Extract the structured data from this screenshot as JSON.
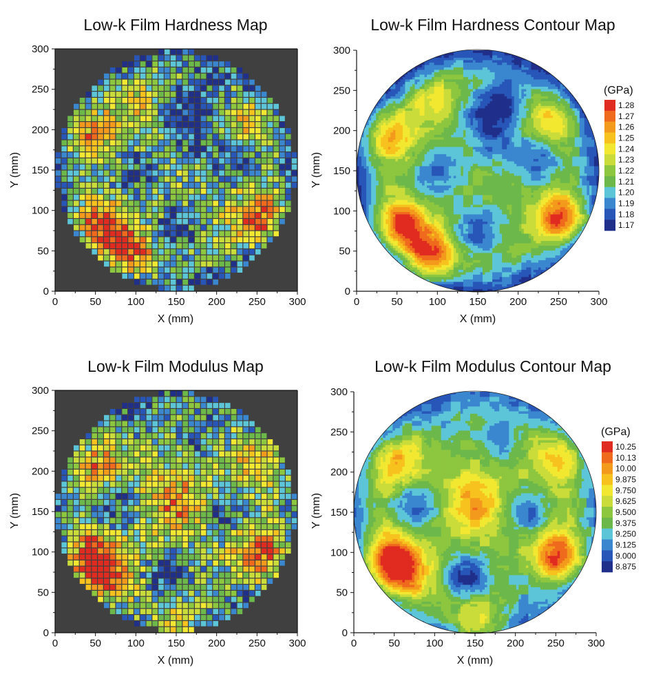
{
  "figure": {
    "colors": {
      "background": "#ffffff",
      "axis": "#111111",
      "outside_wafer": "#404040",
      "contour_line": "#1a1a1a"
    },
    "colormap": [
      "#1f2f8a",
      "#2856b8",
      "#3a86cf",
      "#5cc6d8",
      "#6db84a",
      "#8dc63f",
      "#c9dc3a",
      "#f2e831",
      "#f7c21e",
      "#f39a1d",
      "#ef6a1c",
      "#e02b20"
    ]
  },
  "chart_data": [
    {
      "id": "hardness-map",
      "type": "heatmap",
      "title": "Low-k Film Hardness Map",
      "xlabel": "X (mm)",
      "ylabel": "Y (mm)",
      "xlim": [
        0,
        300
      ],
      "ylim": [
        0,
        300
      ],
      "xticks": [
        0,
        50,
        100,
        150,
        200,
        250,
        300
      ],
      "yticks": [
        0,
        50,
        100,
        150,
        200,
        250,
        300
      ],
      "grid_pitch_mm": 7.5,
      "wafer_diameter_mm": 300,
      "value_range": [
        1.165,
        1.285
      ],
      "unit": "GPa",
      "hotspots": [
        {
          "x": 55,
          "y": 80,
          "value": 1.285
        },
        {
          "x": 90,
          "y": 45,
          "value": 1.28
        },
        {
          "x": 255,
          "y": 90,
          "value": 1.285
        },
        {
          "x": 40,
          "y": 195,
          "value": 1.26
        },
        {
          "x": 240,
          "y": 210,
          "value": 1.25
        },
        {
          "x": 100,
          "y": 235,
          "value": 1.24
        },
        {
          "x": 150,
          "y": 160,
          "value": 1.22
        },
        {
          "x": 185,
          "y": 240,
          "value": 1.18
        },
        {
          "x": 155,
          "y": 220,
          "value": 1.185
        },
        {
          "x": 225,
          "y": 165,
          "value": 1.18
        },
        {
          "x": 100,
          "y": 150,
          "value": 1.185
        },
        {
          "x": 150,
          "y": 75,
          "value": 1.18
        },
        {
          "x": 170,
          "y": 185,
          "value": 1.19
        }
      ],
      "base_value": 1.215,
      "edge_value": 1.175
    },
    {
      "id": "hardness-contour",
      "type": "heatmap",
      "title": "Low-k Film Hardness Contour Map",
      "xlabel": "X (mm)",
      "ylabel": "Y (mm)",
      "xlim": [
        0,
        300
      ],
      "ylim": [
        0,
        300
      ],
      "xticks": [
        0,
        50,
        100,
        150,
        200,
        250,
        300
      ],
      "yticks": [
        0,
        50,
        100,
        150,
        200,
        250,
        300
      ],
      "wafer_diameter_mm": 300,
      "value_range": [
        1.165,
        1.285
      ],
      "unit": "GPa",
      "colorbar": {
        "unit_label": "(GPa)",
        "levels": [
          "1.28",
          "1.27",
          "1.26",
          "1.25",
          "1.24",
          "1.23",
          "1.22",
          "1.21",
          "1.20",
          "1.19",
          "1.18",
          "1.17"
        ]
      },
      "hotspots": [
        {
          "x": 55,
          "y": 80,
          "value": 1.285
        },
        {
          "x": 90,
          "y": 45,
          "value": 1.28
        },
        {
          "x": 255,
          "y": 90,
          "value": 1.285
        },
        {
          "x": 40,
          "y": 195,
          "value": 1.26
        },
        {
          "x": 240,
          "y": 210,
          "value": 1.25
        },
        {
          "x": 100,
          "y": 235,
          "value": 1.24
        },
        {
          "x": 150,
          "y": 160,
          "value": 1.22
        },
        {
          "x": 185,
          "y": 240,
          "value": 1.18
        },
        {
          "x": 155,
          "y": 220,
          "value": 1.185
        },
        {
          "x": 225,
          "y": 165,
          "value": 1.18
        },
        {
          "x": 100,
          "y": 150,
          "value": 1.185
        },
        {
          "x": 150,
          "y": 75,
          "value": 1.18
        },
        {
          "x": 170,
          "y": 185,
          "value": 1.19
        }
      ],
      "base_value": 1.215,
      "edge_value": 1.175
    },
    {
      "id": "modulus-map",
      "type": "heatmap",
      "title": "Low-k Film Modulus Map",
      "xlabel": "X (mm)",
      "ylabel": "Y (mm)",
      "xlim": [
        0,
        300
      ],
      "ylim": [
        0,
        300
      ],
      "xticks": [
        0,
        50,
        100,
        150,
        200,
        250,
        300
      ],
      "yticks": [
        0,
        50,
        100,
        150,
        200,
        250,
        300
      ],
      "grid_pitch_mm": 7.5,
      "wafer_diameter_mm": 300,
      "value_range": [
        8.8125,
        10.3125
      ],
      "unit": "GPa",
      "hotspots": [
        {
          "x": 45,
          "y": 90,
          "value": 10.3
        },
        {
          "x": 60,
          "y": 70,
          "value": 10.1
        },
        {
          "x": 255,
          "y": 95,
          "value": 10.3
        },
        {
          "x": 150,
          "y": 160,
          "value": 10.05
        },
        {
          "x": 50,
          "y": 210,
          "value": 10.0
        },
        {
          "x": 260,
          "y": 220,
          "value": 9.95
        },
        {
          "x": 150,
          "y": 5,
          "value": 10.0
        },
        {
          "x": 75,
          "y": 160,
          "value": 9.0
        },
        {
          "x": 140,
          "y": 70,
          "value": 8.9
        },
        {
          "x": 215,
          "y": 150,
          "value": 9.05
        },
        {
          "x": 180,
          "y": 245,
          "value": 9.1
        },
        {
          "x": 110,
          "y": 260,
          "value": 9.25
        },
        {
          "x": 210,
          "y": 60,
          "value": 9.25
        }
      ],
      "base_value": 9.55,
      "edge_value": 9.1
    },
    {
      "id": "modulus-contour",
      "type": "heatmap",
      "title": "Low-k Film Modulus Contour Map",
      "xlabel": "X (mm)",
      "ylabel": "Y (mm)",
      "xlim": [
        0,
        300
      ],
      "ylim": [
        0,
        300
      ],
      "xticks": [
        0,
        50,
        100,
        150,
        200,
        250,
        300
      ],
      "yticks": [
        0,
        50,
        100,
        150,
        200,
        250,
        300
      ],
      "wafer_diameter_mm": 300,
      "value_range": [
        8.8125,
        10.3125
      ],
      "unit": "GPa",
      "colorbar": {
        "unit_label": "(GPa)",
        "levels": [
          "10.25",
          "10.13",
          "10.00",
          "9.875",
          "9.750",
          "9.625",
          "9.500",
          "9.375",
          "9.250",
          "9.125",
          "9.000",
          "8.875"
        ]
      },
      "hotspots": [
        {
          "x": 45,
          "y": 90,
          "value": 10.3
        },
        {
          "x": 60,
          "y": 70,
          "value": 10.1
        },
        {
          "x": 255,
          "y": 95,
          "value": 10.3
        },
        {
          "x": 150,
          "y": 160,
          "value": 10.05
        },
        {
          "x": 50,
          "y": 210,
          "value": 10.0
        },
        {
          "x": 260,
          "y": 220,
          "value": 9.95
        },
        {
          "x": 150,
          "y": 5,
          "value": 10.0
        },
        {
          "x": 75,
          "y": 160,
          "value": 9.0
        },
        {
          "x": 140,
          "y": 70,
          "value": 8.9
        },
        {
          "x": 215,
          "y": 150,
          "value": 9.05
        },
        {
          "x": 180,
          "y": 245,
          "value": 9.1
        },
        {
          "x": 110,
          "y": 260,
          "value": 9.25
        },
        {
          "x": 210,
          "y": 60,
          "value": 9.25
        }
      ],
      "base_value": 9.55,
      "edge_value": 9.1
    }
  ]
}
